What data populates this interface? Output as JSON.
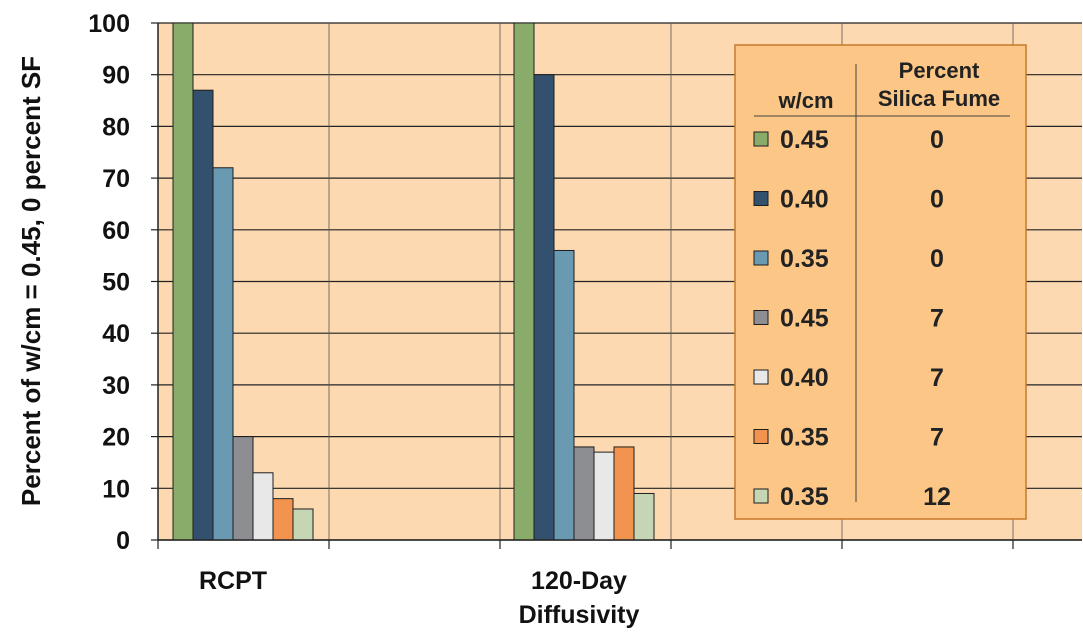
{
  "chart_data": {
    "type": "bar",
    "ylabel": "Percent of w/cm = 0.45, 0 percent SF",
    "xlabel": "",
    "ylim": [
      0,
      100
    ],
    "yticks": [
      0,
      10,
      20,
      30,
      40,
      50,
      60,
      70,
      80,
      90,
      100
    ],
    "grid": true,
    "categories": [
      "RCPT",
      "120-Day Diffusivity"
    ],
    "series": [
      {
        "wcm": "0.45",
        "sf": "0",
        "color": "#8aac6a",
        "values": [
          100,
          100
        ]
      },
      {
        "wcm": "0.40",
        "sf": "0",
        "color": "#34506f",
        "values": [
          87,
          90
        ]
      },
      {
        "wcm": "0.35",
        "sf": "0",
        "color": "#6a9ab2",
        "values": [
          72,
          56
        ]
      },
      {
        "wcm": "0.45",
        "sf": "7",
        "color": "#8c8e91",
        "values": [
          20,
          18
        ]
      },
      {
        "wcm": "0.40",
        "sf": "7",
        "color": "#e8e8e8",
        "values": [
          13,
          17
        ]
      },
      {
        "wcm": "0.35",
        "sf": "7",
        "color": "#f29450",
        "values": [
          8,
          18
        ]
      },
      {
        "wcm": "0.35",
        "sf": "12",
        "color": "#c6d6b4",
        "values": [
          6,
          9
        ]
      }
    ],
    "legend": {
      "position": "right",
      "header_wcm": "w/cm",
      "header_sf_line1": "Percent",
      "header_sf_line2": "Silica Fume"
    },
    "colors": {
      "plot_bg": "#fcd9b1",
      "legend_bg": "#fbc686",
      "legend_border": "#c8792a",
      "grid": "#222222"
    }
  }
}
